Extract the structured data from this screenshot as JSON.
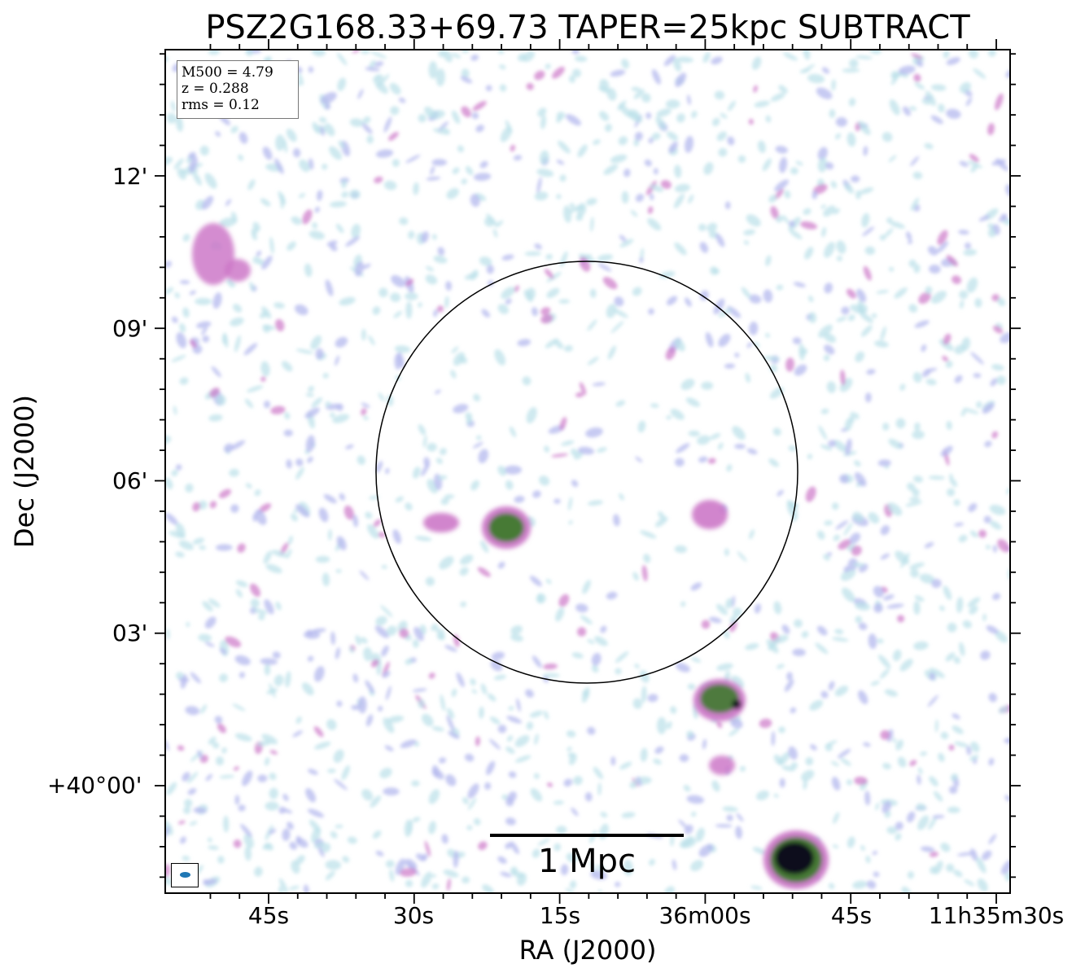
{
  "title": "PSZ2G168.33+69.73 TAPER=25kpc SUBTRACT",
  "info": {
    "mass_label": "M500 = 4.79",
    "z_label": "z = 0.288",
    "rms_label": "rms = 0.12"
  },
  "axes": {
    "xlabel": "RA (J2000)",
    "ylabel": "Dec (J2000)",
    "xticks": [
      "45s",
      "30s",
      "15s",
      "36m00s",
      "45s",
      "11h35m30s"
    ],
    "yticks": [
      "12'",
      "09'",
      "06'",
      "03'",
      "+40°00'"
    ]
  },
  "scalebar": {
    "label": "1 Mpc"
  },
  "colormap": {
    "background": "#ffffff",
    "faint": "#b9e0e8",
    "low": "#b4b8ee",
    "mid": "#cc78c8",
    "high": "#3f7a2e",
    "peak": "#0a0a1a"
  },
  "beam_color": "#1f77b4"
}
